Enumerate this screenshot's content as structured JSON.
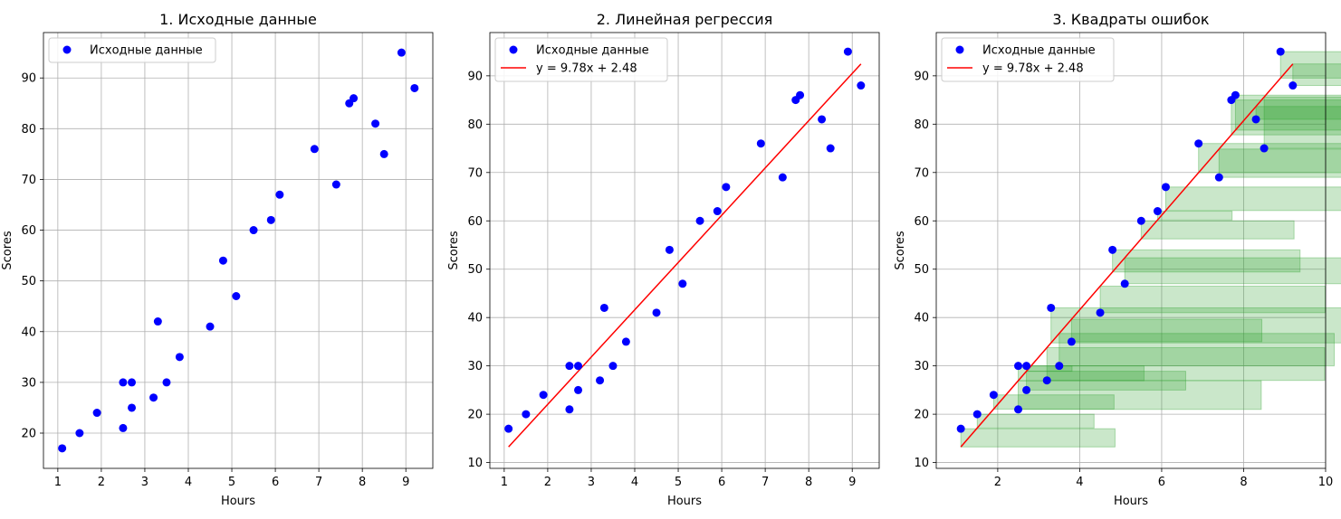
{
  "chart_data": [
    {
      "type": "scatter",
      "title": "1. Исходные данные",
      "xlabel": "Hours",
      "ylabel": "Scores",
      "xlim": [
        0.67,
        9.62
      ],
      "ylim": [
        13.05,
        98.95
      ],
      "xticks": [
        "1",
        "2",
        "3",
        "4",
        "5",
        "6",
        "7",
        "8",
        "9"
      ],
      "yticks": [
        "20",
        "30",
        "40",
        "50",
        "60",
        "70",
        "80",
        "90"
      ],
      "grid": true,
      "legend_position": "top-left",
      "series": [
        {
          "name": "Исходные данные",
          "color": "#0000ff",
          "x": [
            1.1,
            1.5,
            1.9,
            2.5,
            2.5,
            2.7,
            2.7,
            3.2,
            3.3,
            3.5,
            3.8,
            4.5,
            4.8,
            5.1,
            5.5,
            5.9,
            6.1,
            6.9,
            7.4,
            7.7,
            7.8,
            8.3,
            8.5,
            8.9,
            9.2
          ],
          "y": [
            17,
            20,
            24,
            21,
            30,
            25,
            30,
            27,
            42,
            30,
            35,
            41,
            54,
            47,
            60,
            62,
            67,
            76,
            69,
            85,
            86,
            81,
            75,
            95,
            88
          ]
        }
      ]
    },
    {
      "type": "line",
      "title": "2. Линейная регрессия",
      "xlabel": "Hours",
      "ylabel": "Scores",
      "xlim": [
        0.67,
        9.62
      ],
      "ylim": [
        8.8,
        98.95
      ],
      "xticks": [
        "1",
        "2",
        "3",
        "4",
        "5",
        "6",
        "7",
        "8",
        "9"
      ],
      "yticks": [
        "10",
        "20",
        "30",
        "40",
        "50",
        "60",
        "70",
        "80",
        "90"
      ],
      "grid": true,
      "legend_position": "top-left",
      "series": [
        {
          "name": "Исходные данные",
          "kind": "scatter",
          "color": "#0000ff",
          "x": [
            1.1,
            1.5,
            1.9,
            2.5,
            2.5,
            2.7,
            2.7,
            3.2,
            3.3,
            3.5,
            3.8,
            4.5,
            4.8,
            5.1,
            5.5,
            5.9,
            6.1,
            6.9,
            7.4,
            7.7,
            7.8,
            8.3,
            8.5,
            8.9,
            9.2
          ],
          "y": [
            17,
            20,
            24,
            21,
            30,
            25,
            30,
            27,
            42,
            30,
            35,
            41,
            54,
            47,
            60,
            62,
            67,
            76,
            69,
            85,
            86,
            81,
            75,
            95,
            88
          ]
        },
        {
          "name": "y = 9.78x + 2.48",
          "kind": "line",
          "color": "#ff0000",
          "slope": 9.78,
          "intercept": 2.48,
          "x_range": [
            1.1,
            9.2
          ]
        }
      ]
    },
    {
      "type": "scatter",
      "title": "3. Квадраты ошибок",
      "xlabel": "Hours",
      "ylabel": "Scores",
      "xlim": [
        0.5,
        10.0
      ],
      "ylim": [
        8.8,
        98.95
      ],
      "xticks": [
        "2",
        "4",
        "6",
        "8",
        "10"
      ],
      "yticks": [
        "10",
        "20",
        "30",
        "40",
        "50",
        "60",
        "70",
        "80",
        "90"
      ],
      "grid": true,
      "legend_position": "top-left",
      "squares_color": "#2ca02c",
      "series": [
        {
          "name": "Исходные данные",
          "kind": "scatter",
          "color": "#0000ff",
          "x": [
            1.1,
            1.5,
            1.9,
            2.5,
            2.5,
            2.7,
            2.7,
            3.2,
            3.3,
            3.5,
            3.8,
            4.5,
            4.8,
            5.1,
            5.5,
            5.9,
            6.1,
            6.9,
            7.4,
            7.7,
            7.8,
            8.3,
            8.5,
            8.9,
            9.2
          ],
          "y": [
            17,
            20,
            24,
            21,
            30,
            25,
            30,
            27,
            42,
            30,
            35,
            41,
            54,
            47,
            60,
            62,
            67,
            76,
            69,
            85,
            86,
            81,
            75,
            95,
            88
          ]
        },
        {
          "name": "y = 9.78x + 2.48",
          "kind": "line",
          "color": "#ff0000",
          "slope": 9.78,
          "intercept": 2.48,
          "x_range": [
            1.1,
            9.2
          ]
        }
      ]
    }
  ]
}
